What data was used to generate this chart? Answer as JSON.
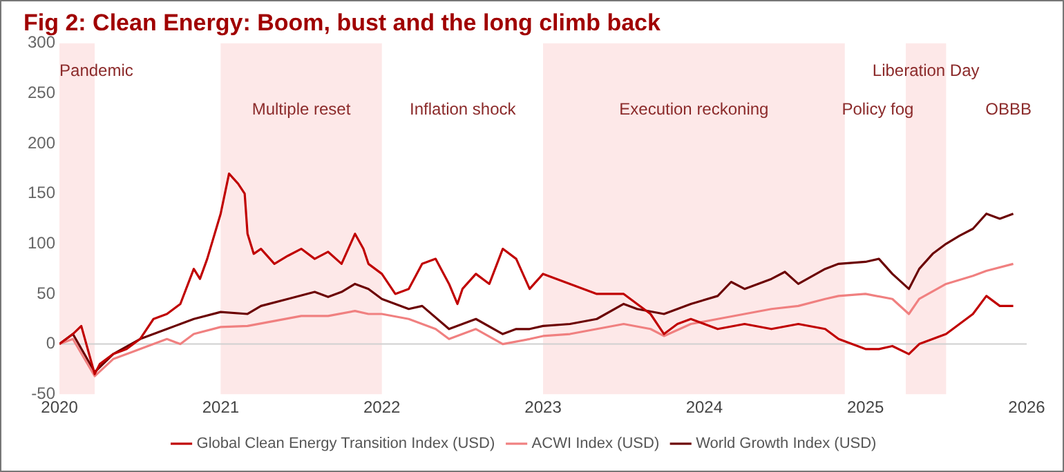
{
  "chart_data": {
    "type": "line",
    "title": "Fig 2: Clean Energy: Boom, bust and the long climb back",
    "xlim": [
      "2020-01-01",
      "2026-01-01"
    ],
    "xticks": [
      "2020",
      "2021",
      "2022",
      "2023",
      "2024",
      "2025",
      "2026"
    ],
    "ylim": [
      -50,
      300
    ],
    "yticks": [
      -50,
      0,
      50,
      100,
      150,
      200,
      250,
      300
    ],
    "grid": false,
    "legend": "bottom",
    "marker": "none",
    "line_style": "solid",
    "series": [
      {
        "name": "Global Clean Energy Transition Index (USD)",
        "color": "#c00000",
        "x": [
          "2020-01",
          "2020-02",
          "2020-02-20",
          "2020-03-20",
          "2020-04",
          "2020-05",
          "2020-06",
          "2020-07",
          "2020-08",
          "2020-09",
          "2020-10",
          "2020-11",
          "2020-11-15",
          "2020-12",
          "2021-01",
          "2021-01-20",
          "2021-02-10",
          "2021-02-25",
          "2021-03",
          "2021-03-15",
          "2021-04",
          "2021-05",
          "2021-06",
          "2021-07",
          "2021-08",
          "2021-09",
          "2021-10",
          "2021-11",
          "2021-11-20",
          "2021-12",
          "2022-01",
          "2022-02",
          "2022-03",
          "2022-04",
          "2022-05",
          "2022-06",
          "2022-06-20",
          "2022-07",
          "2022-08",
          "2022-09",
          "2022-10",
          "2022-11",
          "2022-12",
          "2023-01",
          "2023-03",
          "2023-05",
          "2023-07",
          "2023-09",
          "2023-10",
          "2023-11",
          "2023-12",
          "2024-02",
          "2024-04",
          "2024-06",
          "2024-08",
          "2024-10",
          "2024-11",
          "2025-01",
          "2025-02",
          "2025-03",
          "2025-04-08",
          "2025-05",
          "2025-06",
          "2025-07",
          "2025-08",
          "2025-09",
          "2025-10",
          "2025-11",
          "2025-12"
        ],
        "values": [
          0,
          10,
          18,
          -30,
          -20,
          -10,
          -5,
          5,
          25,
          30,
          40,
          75,
          65,
          85,
          130,
          170,
          160,
          150,
          110,
          90,
          95,
          80,
          88,
          95,
          85,
          92,
          80,
          110,
          95,
          80,
          70,
          50,
          55,
          80,
          85,
          60,
          40,
          55,
          70,
          60,
          95,
          85,
          55,
          70,
          60,
          50,
          50,
          30,
          10,
          20,
          25,
          15,
          20,
          15,
          20,
          15,
          5,
          -5,
          -5,
          -2,
          -10,
          0,
          5,
          10,
          20,
          30,
          48,
          38,
          38
        ]
      },
      {
        "name": "ACWI Index (USD)",
        "color": "#f08080",
        "x": [
          "2020-01",
          "2020-02",
          "2020-03-20",
          "2020-05",
          "2020-07",
          "2020-09",
          "2020-10",
          "2020-11",
          "2021-01",
          "2021-03",
          "2021-05",
          "2021-07",
          "2021-09",
          "2021-11",
          "2021-12",
          "2022-01",
          "2022-03",
          "2022-05",
          "2022-06",
          "2022-08",
          "2022-10",
          "2022-12",
          "2023-01",
          "2023-03",
          "2023-05",
          "2023-07",
          "2023-09",
          "2023-10",
          "2023-12",
          "2024-02",
          "2024-04",
          "2024-06",
          "2024-08",
          "2024-10",
          "2024-11",
          "2025-01",
          "2025-03",
          "2025-04-08",
          "2025-05",
          "2025-07",
          "2025-09",
          "2025-10",
          "2025-12"
        ],
        "values": [
          0,
          5,
          -32,
          -15,
          -5,
          5,
          0,
          10,
          17,
          18,
          23,
          28,
          28,
          33,
          30,
          30,
          25,
          15,
          5,
          15,
          0,
          5,
          8,
          10,
          15,
          20,
          15,
          8,
          20,
          25,
          30,
          35,
          38,
          45,
          48,
          50,
          45,
          30,
          45,
          60,
          68,
          73,
          80
        ]
      },
      {
        "name": "World Growth Index (USD)",
        "color": "#6b0000",
        "x": [
          "2020-01",
          "2020-02",
          "2020-03-20",
          "2020-05",
          "2020-07",
          "2020-09",
          "2020-10",
          "2020-11",
          "2021-01",
          "2021-03",
          "2021-04",
          "2021-06",
          "2021-08",
          "2021-09",
          "2021-10",
          "2021-11",
          "2021-12",
          "2022-01",
          "2022-03",
          "2022-04",
          "2022-06",
          "2022-08",
          "2022-10",
          "2022-11",
          "2022-12",
          "2023-01",
          "2023-03",
          "2023-05",
          "2023-07",
          "2023-08",
          "2023-10",
          "2023-12",
          "2024-02",
          "2024-03",
          "2024-04",
          "2024-06",
          "2024-07",
          "2024-08",
          "2024-10",
          "2024-11",
          "2025-01",
          "2025-02",
          "2025-03",
          "2025-04-08",
          "2025-05",
          "2025-06",
          "2025-07",
          "2025-08",
          "2025-09",
          "2025-10",
          "2025-11",
          "2025-12"
        ],
        "values": [
          0,
          10,
          -28,
          -10,
          5,
          15,
          20,
          25,
          32,
          30,
          38,
          45,
          52,
          47,
          52,
          60,
          55,
          45,
          35,
          38,
          15,
          25,
          10,
          15,
          15,
          18,
          20,
          25,
          40,
          35,
          30,
          40,
          48,
          62,
          55,
          65,
          72,
          60,
          75,
          80,
          82,
          85,
          70,
          55,
          75,
          90,
          100,
          108,
          115,
          130,
          125,
          130
        ]
      }
    ],
    "ref_lines": [
      {
        "axis": "y",
        "value": 0,
        "color": "#d0d0d0"
      }
    ],
    "bands": [
      {
        "axis": "x",
        "from": "2020-01",
        "to": "2020-03-20",
        "color": "#fde8e8",
        "label": "Pandemic"
      },
      {
        "axis": "x",
        "from": "2021-01",
        "to": "2022-01",
        "color": "#fde8e8",
        "label": "Multiple reset"
      },
      {
        "axis": "x",
        "from": "2023-01",
        "to": "2024-11-15",
        "color": "#fde8e8",
        "label": "Execution reckoning"
      },
      {
        "axis": "x",
        "from": "2025-04",
        "to": "2025-07",
        "color": "#fde8e8",
        "label": "Liberation Day"
      }
    ],
    "annotations": [
      "Inflation shock",
      "Policy fog",
      "OBBB"
    ]
  }
}
